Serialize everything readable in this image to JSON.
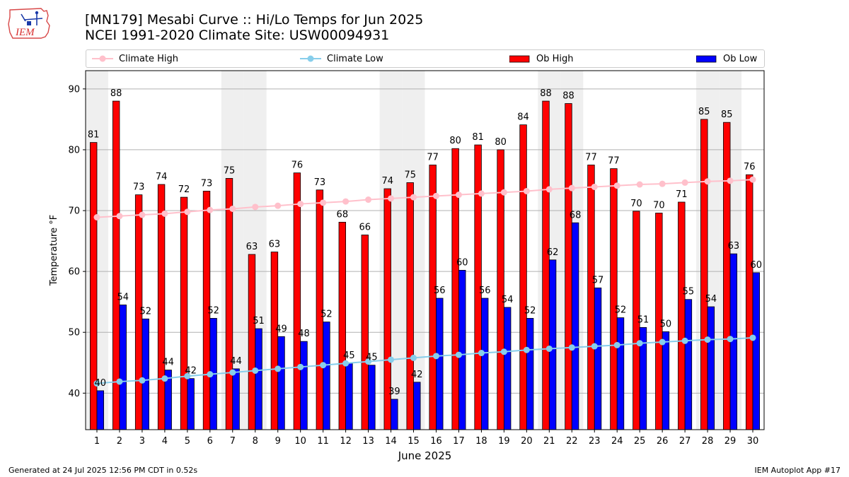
{
  "header": {
    "logo_text": "IEM",
    "title_line1": "[MN179] Mesabi Curve :: Hi/Lo Temps for Jun 2025",
    "title_line2": "NCEI 1991-2020 Climate Site: USW00094931"
  },
  "footer": {
    "generated": "Generated at 24 Jul 2025 12:56 PM CDT in 0.52s",
    "app": "IEM Autoplot App #17"
  },
  "chart_data": {
    "type": "bar",
    "xlabel": "June 2025",
    "ylabel": "Temperature °F",
    "ylim": [
      34,
      93
    ],
    "yticks": [
      40,
      50,
      60,
      70,
      80,
      90
    ],
    "grid": "horizontal",
    "legend_position": "top",
    "categories": [
      "1",
      "2",
      "3",
      "4",
      "5",
      "6",
      "7",
      "8",
      "9",
      "10",
      "11",
      "12",
      "13",
      "14",
      "15",
      "16",
      "17",
      "18",
      "19",
      "20",
      "21",
      "22",
      "23",
      "24",
      "25",
      "26",
      "27",
      "28",
      "29",
      "30"
    ],
    "shaded_weekend_days": [
      1,
      7,
      8,
      14,
      15,
      21,
      22,
      28,
      29
    ],
    "series": [
      {
        "name": "Climate High",
        "kind": "line",
        "color": "#ffc0cb",
        "values": [
          68.9,
          69.1,
          69.3,
          69.5,
          69.8,
          70.1,
          70.3,
          70.6,
          70.8,
          71.1,
          71.3,
          71.5,
          71.8,
          72.0,
          72.2,
          72.4,
          72.6,
          72.8,
          73.0,
          73.2,
          73.5,
          73.7,
          73.9,
          74.1,
          74.3,
          74.4,
          74.6,
          74.8,
          74.9,
          75.1
        ]
      },
      {
        "name": "Climate Low",
        "kind": "line",
        "color": "#87ceeb",
        "values": [
          41.6,
          41.9,
          42.1,
          42.4,
          42.8,
          43.1,
          43.4,
          43.7,
          44.0,
          44.3,
          44.6,
          44.9,
          45.2,
          45.5,
          45.8,
          46.1,
          46.3,
          46.6,
          46.8,
          47.1,
          47.3,
          47.5,
          47.7,
          47.9,
          48.2,
          48.4,
          48.6,
          48.8,
          48.9,
          49.1
        ]
      },
      {
        "name": "Ob High",
        "kind": "bar",
        "color": "#ff0000",
        "values": [
          81.2,
          88.0,
          72.6,
          74.3,
          72.2,
          73.2,
          75.3,
          62.8,
          63.2,
          76.2,
          73.4,
          68.1,
          66.0,
          73.6,
          74.6,
          77.5,
          80.2,
          80.8,
          80.0,
          84.1,
          88.0,
          87.6,
          77.5,
          76.9,
          69.9,
          69.6,
          71.4,
          85.0,
          84.5,
          75.9
        ],
        "labels": [
          "81",
          "88",
          "73",
          "74",
          "72",
          "73",
          "75",
          "63",
          "63",
          "76",
          "73",
          "68",
          "66",
          "74",
          "75",
          "77",
          "80",
          "81",
          "80",
          "84",
          "88",
          "88",
          "77",
          "77",
          "70",
          "70",
          "71",
          "85",
          "85",
          "76"
        ]
      },
      {
        "name": "Ob Low",
        "kind": "bar",
        "color": "#0000ff",
        "values": [
          40.4,
          54.5,
          52.2,
          43.8,
          42.4,
          52.3,
          44.0,
          50.6,
          49.3,
          48.5,
          51.7,
          44.9,
          44.6,
          39.0,
          41.8,
          55.6,
          60.2,
          55.6,
          54.1,
          52.3,
          61.9,
          68.0,
          57.3,
          52.4,
          50.8,
          50.1,
          55.4,
          54.2,
          62.9,
          59.8
        ],
        "labels": [
          "40",
          "54",
          "52",
          "44",
          "42",
          "52",
          "44",
          "51",
          "49",
          "48",
          "52",
          "45",
          "45",
          "39",
          "42",
          "56",
          "60",
          "56",
          "54",
          "52",
          "62",
          "68",
          "57",
          "52",
          "51",
          "50",
          "55",
          "54",
          "63",
          "60"
        ]
      }
    ]
  }
}
